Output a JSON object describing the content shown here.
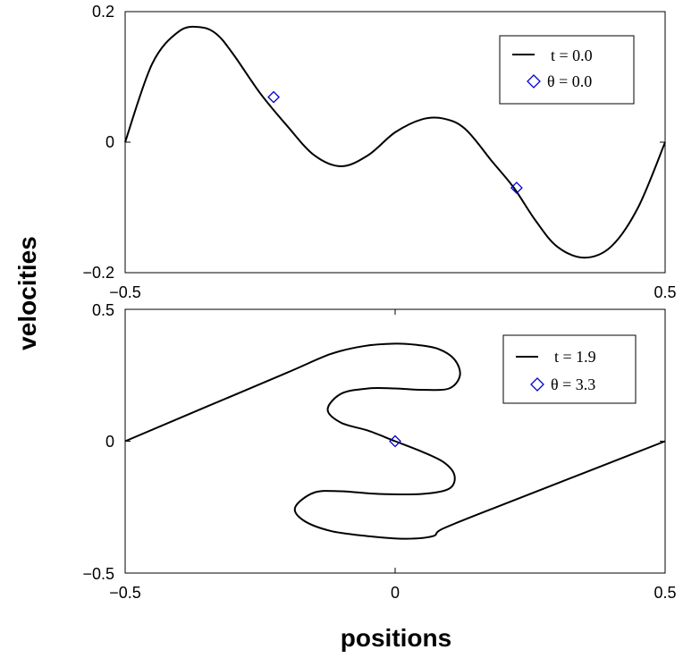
{
  "figure": {
    "xlabel": "positions",
    "ylabel": "velocities"
  },
  "colors": {
    "curve": "#000000",
    "marker": "#0000cc",
    "axes": "#000000",
    "background": "#ffffff"
  },
  "chart_data": [
    {
      "type": "line",
      "panel": "top",
      "xlim": [
        -0.5,
        0.5
      ],
      "ylim": [
        -0.2,
        0.2
      ],
      "x_tick_labels": [
        "−0.5",
        "0.5"
      ],
      "y_tick_labels": [
        "0.2",
        "0",
        "−0.2"
      ],
      "legend_position": "top-right",
      "legend": [
        "t = 0.0",
        "θ = 0.0"
      ],
      "series": [
        {
          "name": "t = 0.0",
          "kind": "line",
          "x": [
            -0.5,
            -0.45,
            -0.4,
            -0.36,
            -0.33,
            -0.3,
            -0.25,
            -0.2,
            -0.15,
            -0.1,
            -0.05,
            0.0,
            0.05,
            0.09,
            0.13,
            0.18,
            0.22,
            0.26,
            0.3,
            0.35,
            0.4,
            0.45,
            0.5
          ],
          "y": [
            0.0,
            0.12,
            0.17,
            0.176,
            0.165,
            0.135,
            0.075,
            0.025,
            -0.02,
            -0.037,
            -0.02,
            0.015,
            0.035,
            0.036,
            0.02,
            -0.03,
            -0.07,
            -0.12,
            -0.16,
            -0.177,
            -0.16,
            -0.1,
            0.0
          ]
        },
        {
          "name": "θ = 0.0",
          "kind": "marker",
          "x": [
            -0.225,
            0.225
          ],
          "y": [
            0.069,
            -0.07
          ]
        }
      ]
    },
    {
      "type": "line",
      "panel": "bottom",
      "xlim": [
        -0.5,
        0.5
      ],
      "ylim": [
        -0.5,
        0.5
      ],
      "x_tick_labels": [
        "−0.5",
        "0",
        "0.5"
      ],
      "y_tick_labels": [
        "0.5",
        "0",
        "−0.5"
      ],
      "legend_position": "top-right",
      "legend": [
        "t = 1.9",
        "θ = 3.3"
      ],
      "series": [
        {
          "name": "t = 1.9",
          "kind": "line",
          "x": [
            -0.5,
            -0.35,
            -0.2,
            -0.12,
            -0.06,
            0.0,
            0.04,
            0.08,
            0.11,
            0.12,
            0.1,
            0.05,
            0.0,
            -0.05,
            -0.1,
            -0.125,
            -0.1,
            -0.05,
            0.0,
            0.05,
            0.09,
            0.11,
            0.1,
            0.05,
            -0.03,
            -0.1,
            -0.15,
            -0.185,
            -0.17,
            -0.12,
            -0.05,
            0.02,
            0.07,
            0.09,
            0.2,
            0.35,
            0.5
          ],
          "y": [
            0.0,
            0.13,
            0.26,
            0.33,
            0.36,
            0.37,
            0.365,
            0.35,
            0.31,
            0.25,
            0.2,
            0.195,
            0.2,
            0.2,
            0.18,
            0.12,
            0.07,
            0.04,
            0.0,
            -0.04,
            -0.08,
            -0.13,
            -0.18,
            -0.2,
            -0.2,
            -0.19,
            -0.195,
            -0.25,
            -0.3,
            -0.34,
            -0.36,
            -0.37,
            -0.36,
            -0.33,
            -0.24,
            -0.12,
            0.0
          ]
        },
        {
          "name": "θ = 3.3",
          "kind": "marker",
          "x": [
            0.0
          ],
          "y": [
            0.0
          ]
        }
      ]
    }
  ]
}
